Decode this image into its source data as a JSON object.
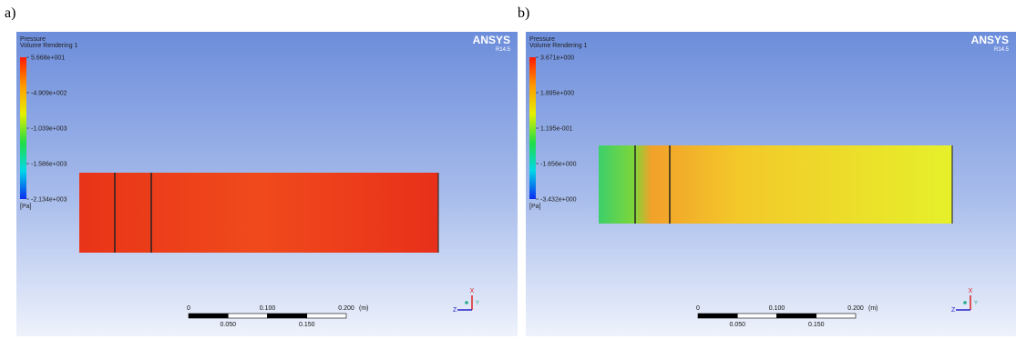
{
  "panels": [
    {
      "label": "a)",
      "legend_title": "Pressure",
      "legend_subtitle": "Volume Rendering 1",
      "colorbar_ticks": [
        "5.668e+001",
        "-4.909e+002",
        "-1.039e+003",
        "-1.586e+003",
        "-2.134e+003"
      ],
      "unit": "[Pa]",
      "brand": "ANSYS",
      "version": "R14.5",
      "scale_top": [
        "0",
        "0.100",
        "0.200"
      ],
      "scale_unit": "(m)",
      "scale_bottom": [
        "0.050",
        "0.150"
      ],
      "axes": [
        "X",
        "Y",
        "Z"
      ]
    },
    {
      "label": "b)",
      "legend_title": "Pressure",
      "legend_subtitle": "Volume Rendering 1",
      "colorbar_ticks": [
        "3.671e+000",
        "1.895e+000",
        "1.195e-001",
        "-1.656e+000",
        "-3.432e+000"
      ],
      "unit": "[Pa]",
      "brand": "ANSYS",
      "version": "R14.5",
      "scale_top": [
        "0",
        "0.100",
        "0.200"
      ],
      "scale_unit": "(m)",
      "scale_bottom": [
        "0.050",
        "0.150"
      ],
      "axes": [
        "X",
        "Y",
        "Z"
      ]
    }
  ]
}
